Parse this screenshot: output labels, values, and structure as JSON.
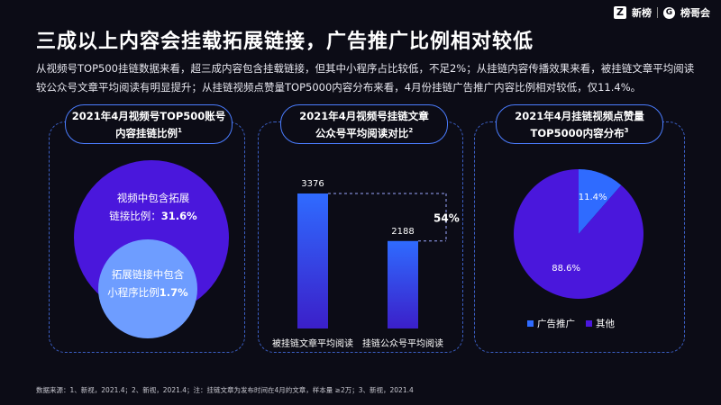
{
  "logo": {
    "brand1": "新榜",
    "brand2": "榜哥会"
  },
  "title": "三成以上内容会挂载拓展链接，广告推广比例相对较低",
  "subtitle": "从视频号TOP500挂链数据来看，超三成内容包含挂载链接，但其中小程序占比较低，不足2%；从挂链内容传播效果来看，被挂链文章平均阅读较公众号文章平均阅读有明显提升；从挂链视频点赞量TOP5000内容分布来看，4月份挂链广告推广内容比例相对较低，仅11.4%。",
  "panels": [
    {
      "line1": "2021年4月视频号TOP500账号",
      "line2": "内容挂链比例",
      "sup": "1"
    },
    {
      "line1": "2021年4月视频号挂链文章",
      "line2": "公众号平均阅读对比",
      "sup": "2"
    },
    {
      "line1": "2021年4月挂链视频点赞量",
      "line2": "TOP5000内容分布",
      "sup": "3"
    }
  ],
  "circles": {
    "outer_line1": "视频中包含拓展",
    "outer_label": "链接比例：",
    "outer_value": "31.6%",
    "inner_line1": "拓展链接中包含",
    "inner_label": "小程序比例",
    "inner_value": "1.7%"
  },
  "colors": {
    "accent_blue": "#2f6bff",
    "purple": "#4a17dc",
    "light_blue": "#6e9dff"
  },
  "chart_data": [
    {
      "type": "bar",
      "categories": [
        "被挂链文章平均阅读",
        "挂链公众号平均阅读"
      ],
      "values": [
        3376,
        2188
      ],
      "annotation": "54%",
      "ylim": [
        0,
        3376
      ]
    },
    {
      "type": "pie",
      "categories": [
        "广告推广",
        "其他"
      ],
      "values": [
        11.4,
        88.6
      ],
      "labels": [
        "11.4%",
        "88.6%"
      ],
      "legend": "bottom"
    }
  ],
  "footnote": "数据来源：1、新视，2021.4；2、新视，2021.4；注：挂链文章为发布时间在4月的文章，样本量 ≥2万；3、新视，2021.4"
}
